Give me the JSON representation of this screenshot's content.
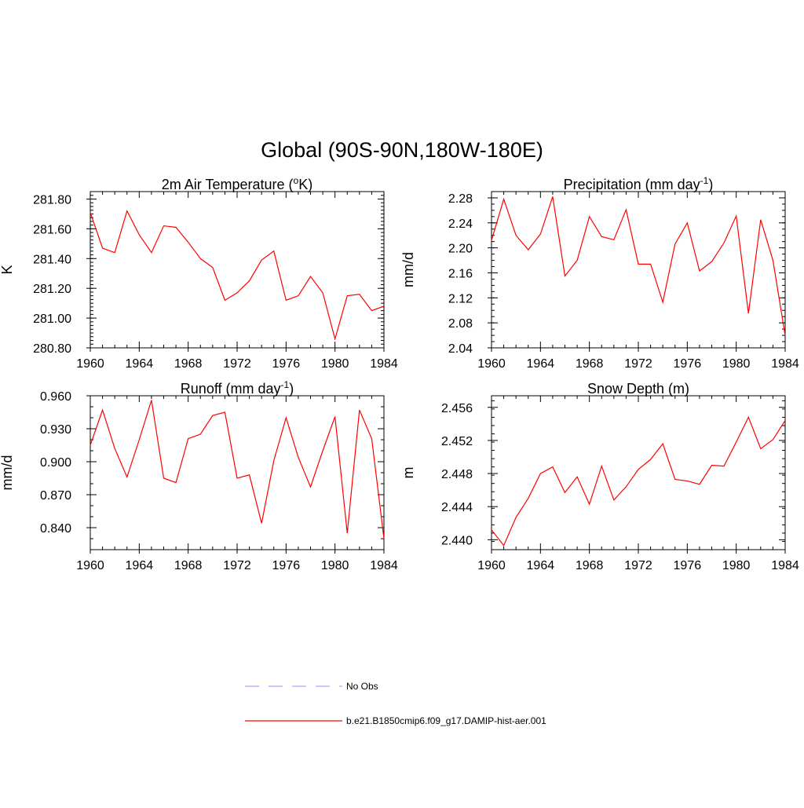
{
  "title": "Global (90S-90N,180W-180E)",
  "series_color": "#ff0000",
  "obs_color": "#a9a9ff",
  "legend": [
    {
      "label": "No Obs",
      "style": "dashed",
      "color": "#a9a9ff"
    },
    {
      "label": "b.e21.B1850cmip6.f09_g17.DAMIP-hist-aer.001",
      "style": "solid",
      "color": "#ff0000"
    }
  ],
  "chart_data": [
    {
      "type": "line",
      "title_main": "2m Air Temperature (",
      "title_sup": "o",
      "title_end": "K)",
      "ylabel": "K",
      "xlim": [
        1960,
        1984
      ],
      "ylim": [
        280.8,
        281.85
      ],
      "xticks": [
        "1960",
        "1964",
        "1968",
        "1972",
        "1976",
        "1980",
        "1984"
      ],
      "yticks": [
        "280.80",
        "281.00",
        "281.20",
        "281.40",
        "281.60",
        "281.80"
      ],
      "x": [
        1960,
        1961,
        1962,
        1963,
        1964,
        1965,
        1966,
        1967,
        1968,
        1969,
        1970,
        1971,
        1972,
        1973,
        1974,
        1975,
        1976,
        1977,
        1978,
        1979,
        1980,
        1981,
        1982,
        1983,
        1984
      ],
      "values": [
        281.71,
        281.47,
        281.44,
        281.72,
        281.56,
        281.44,
        281.62,
        281.61,
        281.51,
        281.4,
        281.34,
        281.12,
        281.17,
        281.25,
        281.39,
        281.45,
        281.12,
        281.15,
        281.28,
        281.17,
        280.86,
        281.15,
        281.16,
        281.05,
        281.08
      ]
    },
    {
      "type": "line",
      "title_main": "Precipitation (mm day",
      "title_sup": "-1",
      "title_end": ")",
      "ylabel": "mm/d",
      "xlim": [
        1960,
        1984
      ],
      "ylim": [
        2.04,
        2.29
      ],
      "xticks": [
        "1960",
        "1964",
        "1968",
        "1972",
        "1976",
        "1980",
        "1984"
      ],
      "yticks": [
        "2.04",
        "2.08",
        "2.12",
        "2.16",
        "2.20",
        "2.24",
        "2.28"
      ],
      "x": [
        1960,
        1961,
        1962,
        1963,
        1964,
        1965,
        1966,
        1967,
        1968,
        1969,
        1970,
        1971,
        1972,
        1973,
        1974,
        1975,
        1976,
        1977,
        1978,
        1979,
        1980,
        1981,
        1982,
        1983,
        1984
      ],
      "values": [
        2.212,
        2.278,
        2.22,
        2.197,
        2.222,
        2.282,
        2.155,
        2.18,
        2.25,
        2.218,
        2.213,
        2.261,
        2.174,
        2.174,
        2.113,
        2.206,
        2.24,
        2.163,
        2.178,
        2.208,
        2.251,
        2.095,
        2.245,
        2.18,
        2.06
      ]
    },
    {
      "type": "line",
      "title_main": "Runoff (mm day",
      "title_sup": "-1",
      "title_end": ")",
      "ylabel": "mm/d",
      "xlim": [
        1960,
        1984
      ],
      "ylim": [
        0.82,
        0.96
      ],
      "xticks": [
        "1960",
        "1964",
        "1968",
        "1972",
        "1976",
        "1980",
        "1984"
      ],
      "yticks": [
        "0.840",
        "0.870",
        "0.900",
        "0.930",
        "0.960"
      ],
      "x": [
        1960,
        1961,
        1962,
        1963,
        1964,
        1965,
        1966,
        1967,
        1968,
        1969,
        1970,
        1971,
        1972,
        1973,
        1974,
        1975,
        1976,
        1977,
        1978,
        1979,
        1980,
        1981,
        1982,
        1983,
        1984
      ],
      "values": [
        0.915,
        0.947,
        0.912,
        0.886,
        0.92,
        0.956,
        0.885,
        0.881,
        0.921,
        0.925,
        0.942,
        0.945,
        0.885,
        0.888,
        0.844,
        0.901,
        0.94,
        0.904,
        0.877,
        0.91,
        0.941,
        0.835,
        0.947,
        0.921,
        0.83
      ]
    },
    {
      "type": "line",
      "title_main": "Snow Depth (m)",
      "title_sup": "",
      "title_end": "",
      "ylabel": "m",
      "xlim": [
        1960,
        1984
      ],
      "ylim": [
        2.4388,
        2.4574
      ],
      "xticks": [
        "1960",
        "1964",
        "1968",
        "1972",
        "1976",
        "1980",
        "1984"
      ],
      "yticks": [
        "2.440",
        "2.444",
        "2.448",
        "2.452",
        "2.456"
      ],
      "x": [
        1960,
        1961,
        1962,
        1963,
        1964,
        1965,
        1966,
        1967,
        1968,
        1969,
        1970,
        1971,
        1972,
        1973,
        1974,
        1975,
        1976,
        1977,
        1978,
        1979,
        1980,
        1981,
        1982,
        1983,
        1984
      ],
      "values": [
        2.4412,
        2.4393,
        2.4427,
        2.445,
        2.448,
        2.4488,
        2.4457,
        2.4476,
        2.4443,
        2.4489,
        2.4448,
        2.4464,
        2.4485,
        2.4497,
        2.4516,
        2.4473,
        2.4471,
        2.4467,
        2.449,
        2.4489,
        2.4518,
        2.4548,
        2.451,
        2.4521,
        2.4544
      ]
    }
  ]
}
